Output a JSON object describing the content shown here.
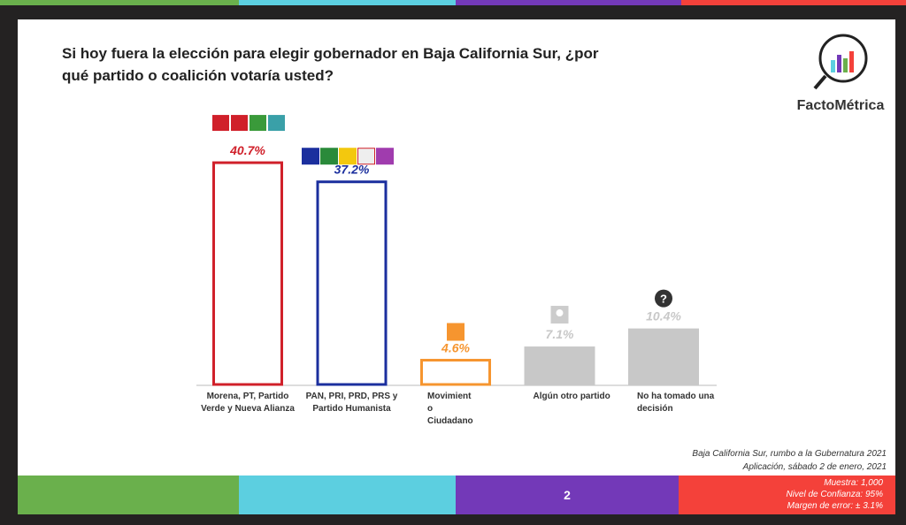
{
  "title": "Si hoy fuera la elección para elegir gobernador en Baja California Sur, ¿por qué partido o coalición votaría usted?",
  "brand": "FactoMétrica",
  "source_line1": "Baja California Sur, rumbo a la Gubernatura 2021",
  "source_line2": "Aplicación, sábado 2 de enero, 2021",
  "page_number": "2",
  "meta": {
    "sample": "Muestra:  1,000",
    "confidence": "Nivel de Confianza: 95%",
    "error": "Margen de error: ± 3.1%"
  },
  "colors": {
    "green": "#6ab04c",
    "cyan": "#5ccfe0",
    "purple": "#7339b8",
    "red": "#f4413a"
  },
  "chart_data": {
    "type": "bar",
    "ylim": [
      0,
      45
    ],
    "grid": false,
    "categories": [
      "Morena, PT, Partido Verde y Nueva Alianza",
      "PAN, PRI, PRD, PRS y Partido Humanista",
      "Movimient o Ciudadano",
      "Algún otro partido",
      "No ha tomado una decisión"
    ],
    "values": [
      40.7,
      37.2,
      4.6,
      7.1,
      10.4
    ],
    "labels": [
      "40.7%",
      "37.2%",
      "4.6%",
      "7.1%",
      "10.4%"
    ],
    "bar_colors": [
      "#d0202a",
      "#1b2f9e",
      "#f6952f",
      "#c8c8c8",
      "#c8c8c8"
    ],
    "bar_styles": [
      "outline",
      "outline",
      "outline",
      "filled",
      "filled"
    ],
    "icons": [
      "party-logos-morena-pt-verde-na",
      "party-logos-pan-pri-prd-prs-ph",
      "party-logo-mc",
      "person-icon",
      "question-icon"
    ]
  }
}
